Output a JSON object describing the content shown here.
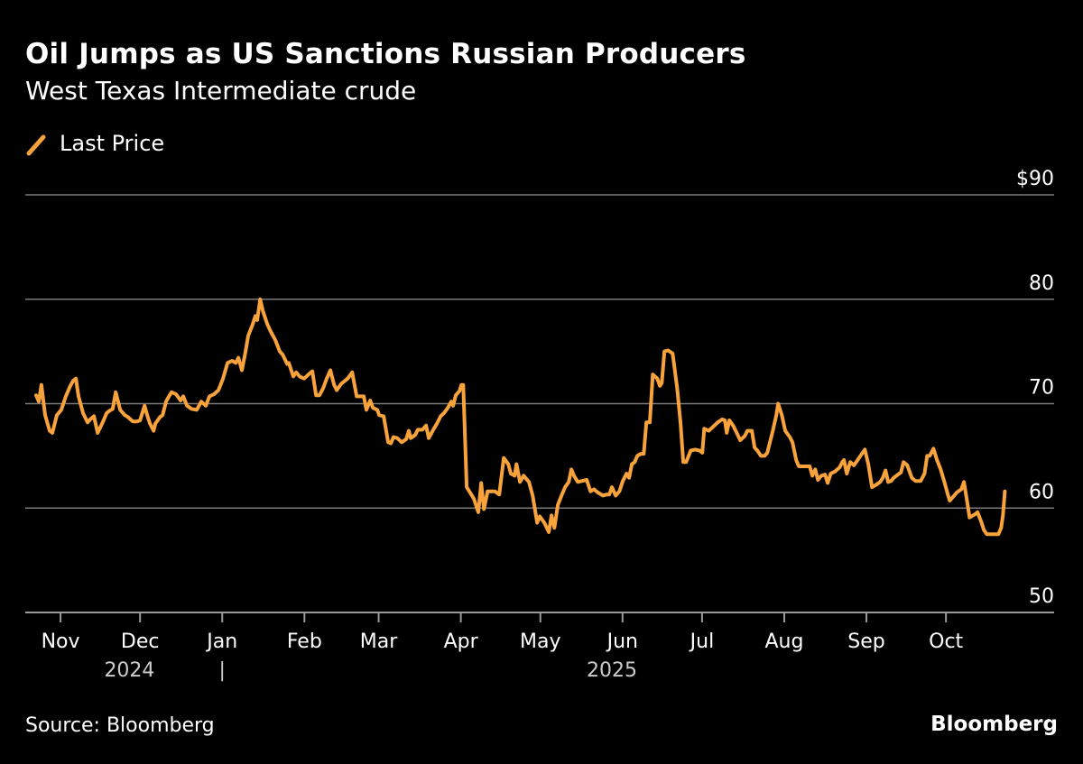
{
  "header": {
    "title": "Oil Jumps as US Sanctions Russian Producers",
    "subtitle": "West Texas Intermediate crude"
  },
  "footer": {
    "source": "Source: Bloomberg",
    "brand": "Bloomberg"
  },
  "colors": {
    "line": "#F7A23B",
    "background": "#000000",
    "grid": "#808080"
  },
  "chart_data": {
    "type": "line",
    "title": "Oil Jumps as US Sanctions Russian Producers",
    "subtitle": "West Texas Intermediate crude",
    "xlabel": "",
    "ylabel": "",
    "x_unit": "days since 2024-11-01",
    "ylim": [
      50,
      90
    ],
    "xlim": [
      -13.3,
      374.8
    ],
    "grid": true,
    "legend": {
      "placement": "top-left",
      "entries": [
        "Last Price"
      ]
    },
    "y_ticks": [
      {
        "value": 90,
        "label": "$90"
      },
      {
        "value": 80,
        "label": "80"
      },
      {
        "value": 70,
        "label": "70"
      },
      {
        "value": 60,
        "label": "60"
      },
      {
        "value": 50,
        "label": "50"
      }
    ],
    "x_ticks": [
      {
        "value": 0,
        "label": "Nov"
      },
      {
        "value": 30,
        "label": "Dec"
      },
      {
        "value": 61,
        "label": "Jan"
      },
      {
        "value": 92,
        "label": "Feb"
      },
      {
        "value": 120,
        "label": "Mar"
      },
      {
        "value": 151,
        "label": "Apr"
      },
      {
        "value": 181,
        "label": "May"
      },
      {
        "value": 212,
        "label": "Jun"
      },
      {
        "value": 242,
        "label": "Jul"
      },
      {
        "value": 273,
        "label": "Aug"
      },
      {
        "value": 304,
        "label": "Sep"
      },
      {
        "value": 334,
        "label": "Oct"
      }
    ],
    "year_labels": [
      {
        "value": 26,
        "label": "2024"
      },
      {
        "value": 61,
        "label": "|"
      },
      {
        "value": 208,
        "label": "2025"
      }
    ],
    "series": [
      {
        "name": "Last Price",
        "points": [
          [
            -9.2,
            70.8
          ],
          [
            -8.2,
            70.2
          ],
          [
            -7.2,
            71.8
          ],
          [
            -5.8,
            68.9
          ],
          [
            -4.1,
            67.4
          ],
          [
            -3.1,
            67.2
          ],
          [
            -1.4,
            68.9
          ],
          [
            0.3,
            69.4
          ],
          [
            2.0,
            70.7
          ],
          [
            3.7,
            71.7
          ],
          [
            4.8,
            72.2
          ],
          [
            5.8,
            72.4
          ],
          [
            6.8,
            70.7
          ],
          [
            8.5,
            69.1
          ],
          [
            10.2,
            68.2
          ],
          [
            11.2,
            68.5
          ],
          [
            12.6,
            68.8
          ],
          [
            14.0,
            67.2
          ],
          [
            15.7,
            68.1
          ],
          [
            17.4,
            69.1
          ],
          [
            18.4,
            69.3
          ],
          [
            19.7,
            69.5
          ],
          [
            20.8,
            71.1
          ],
          [
            22.5,
            69.4
          ],
          [
            24.2,
            68.9
          ],
          [
            25.5,
            68.7
          ],
          [
            27.2,
            68.3
          ],
          [
            28.9,
            68.3
          ],
          [
            30.0,
            68.4
          ],
          [
            31.7,
            69.8
          ],
          [
            32.7,
            68.9
          ],
          [
            33.7,
            68.1
          ],
          [
            35.1,
            67.4
          ],
          [
            35.8,
            68.1
          ],
          [
            37.5,
            68.7
          ],
          [
            38.5,
            68.9
          ],
          [
            39.8,
            70.2
          ],
          [
            40.9,
            70.7
          ],
          [
            41.9,
            71.1
          ],
          [
            43.6,
            70.9
          ],
          [
            45.3,
            70.3
          ],
          [
            46.3,
            70.7
          ],
          [
            47.7,
            69.8
          ],
          [
            49.4,
            69.5
          ],
          [
            51.4,
            69.4
          ],
          [
            53.1,
            70.2
          ],
          [
            54.8,
            69.8
          ],
          [
            56.2,
            70.7
          ],
          [
            57.9,
            70.9
          ],
          [
            59.6,
            71.3
          ],
          [
            61.3,
            72.4
          ],
          [
            63.0,
            73.9
          ],
          [
            64.7,
            74.1
          ],
          [
            66.1,
            73.9
          ],
          [
            67.1,
            74.4
          ],
          [
            68.4,
            73.2
          ],
          [
            69.8,
            75.0
          ],
          [
            70.8,
            76.5
          ],
          [
            72.5,
            77.6
          ],
          [
            73.5,
            78.4
          ],
          [
            74.2,
            78.0
          ],
          [
            75.3,
            80.0
          ],
          [
            76.3,
            78.9
          ],
          [
            78.0,
            77.6
          ],
          [
            79.3,
            76.9
          ],
          [
            81.0,
            76.1
          ],
          [
            82.7,
            75.0
          ],
          [
            83.8,
            74.7
          ],
          [
            85.5,
            73.8
          ],
          [
            86.1,
            73.9
          ],
          [
            87.8,
            72.6
          ],
          [
            88.9,
            73.0
          ],
          [
            90.2,
            72.6
          ],
          [
            91.9,
            72.4
          ],
          [
            94.0,
            72.9
          ],
          [
            95.0,
            73.1
          ],
          [
            96.4,
            70.8
          ],
          [
            97.7,
            70.8
          ],
          [
            99.1,
            71.5
          ],
          [
            100.4,
            72.4
          ],
          [
            101.8,
            73.2
          ],
          [
            103.2,
            71.8
          ],
          [
            104.2,
            71.3
          ],
          [
            105.9,
            71.9
          ],
          [
            108.3,
            72.4
          ],
          [
            110.0,
            73.0
          ],
          [
            111.7,
            70.7
          ],
          [
            112.7,
            70.7
          ],
          [
            114.4,
            70.7
          ],
          [
            115.4,
            69.4
          ],
          [
            116.8,
            70.3
          ],
          [
            117.8,
            69.6
          ],
          [
            119.5,
            69.4
          ],
          [
            120.2,
            68.9
          ],
          [
            121.9,
            68.8
          ],
          [
            123.6,
            66.3
          ],
          [
            124.6,
            66.2
          ],
          [
            125.6,
            66.8
          ],
          [
            127.0,
            66.7
          ],
          [
            128.7,
            66.3
          ],
          [
            130.4,
            66.6
          ],
          [
            131.4,
            67.4
          ],
          [
            132.1,
            66.7
          ],
          [
            133.8,
            67.0
          ],
          [
            134.8,
            67.5
          ],
          [
            136.5,
            67.5
          ],
          [
            137.9,
            67.9
          ],
          [
            138.9,
            66.7
          ],
          [
            140.6,
            67.5
          ],
          [
            142.0,
            68.1
          ],
          [
            143.4,
            68.8
          ],
          [
            144.7,
            69.1
          ],
          [
            146.1,
            69.6
          ],
          [
            147.4,
            70.2
          ],
          [
            148.1,
            69.8
          ],
          [
            149.1,
            70.8
          ],
          [
            150.5,
            71.2
          ],
          [
            151.2,
            71.8
          ],
          [
            151.9,
            71.8
          ],
          [
            153.2,
            62.0
          ],
          [
            154.2,
            61.6
          ],
          [
            155.9,
            60.9
          ],
          [
            157.6,
            59.6
          ],
          [
            158.7,
            62.4
          ],
          [
            159.7,
            59.9
          ],
          [
            161.1,
            61.6
          ],
          [
            163.8,
            61.6
          ],
          [
            165.5,
            61.3
          ],
          [
            167.2,
            64.8
          ],
          [
            168.9,
            64.2
          ],
          [
            169.9,
            63.3
          ],
          [
            171.3,
            63.1
          ],
          [
            172.0,
            64.2
          ],
          [
            173.3,
            62.5
          ],
          [
            174.7,
            63.1
          ],
          [
            176.7,
            62.5
          ],
          [
            178.1,
            61.2
          ],
          [
            179.8,
            58.6
          ],
          [
            180.8,
            59.2
          ],
          [
            182.5,
            58.6
          ],
          [
            184.2,
            57.7
          ],
          [
            185.2,
            59.3
          ],
          [
            186.3,
            58.1
          ],
          [
            187.6,
            60.3
          ],
          [
            189.0,
            61.2
          ],
          [
            190.3,
            62.0
          ],
          [
            191.7,
            62.5
          ],
          [
            192.7,
            63.7
          ],
          [
            193.7,
            63.1
          ],
          [
            195.1,
            62.5
          ],
          [
            196.8,
            62.6
          ],
          [
            198.5,
            62.7
          ],
          [
            199.9,
            61.6
          ],
          [
            201.2,
            61.8
          ],
          [
            202.6,
            61.5
          ],
          [
            204.6,
            61.2
          ],
          [
            206.0,
            61.3
          ],
          [
            207.0,
            61.3
          ],
          [
            208.0,
            62.0
          ],
          [
            209.4,
            61.2
          ],
          [
            210.8,
            61.6
          ],
          [
            212.1,
            62.6
          ],
          [
            213.5,
            63.3
          ],
          [
            214.5,
            62.9
          ],
          [
            215.5,
            64.2
          ],
          [
            216.6,
            64.4
          ],
          [
            217.6,
            65.0
          ],
          [
            218.9,
            65.2
          ],
          [
            220.0,
            65.2
          ],
          [
            221.0,
            68.2
          ],
          [
            222.3,
            68.2
          ],
          [
            223.4,
            72.8
          ],
          [
            225.1,
            72.4
          ],
          [
            226.1,
            71.7
          ],
          [
            226.8,
            72.0
          ],
          [
            227.8,
            75.0
          ],
          [
            229.2,
            75.1
          ],
          [
            230.9,
            74.8
          ],
          [
            232.6,
            71.5
          ],
          [
            233.9,
            68.1
          ],
          [
            234.9,
            64.4
          ],
          [
            236.0,
            64.4
          ],
          [
            237.7,
            65.5
          ],
          [
            239.4,
            65.6
          ],
          [
            241.1,
            65.5
          ],
          [
            242.1,
            65.3
          ],
          [
            242.8,
            67.6
          ],
          [
            244.5,
            67.4
          ],
          [
            246.2,
            67.8
          ],
          [
            247.9,
            68.2
          ],
          [
            249.6,
            68.5
          ],
          [
            250.6,
            68.4
          ],
          [
            251.3,
            67.2
          ],
          [
            252.3,
            68.4
          ],
          [
            253.7,
            67.9
          ],
          [
            254.7,
            67.4
          ],
          [
            256.4,
            66.5
          ],
          [
            258.1,
            66.9
          ],
          [
            259.1,
            67.4
          ],
          [
            260.8,
            67.4
          ],
          [
            261.8,
            65.8
          ],
          [
            262.9,
            65.5
          ],
          [
            264.2,
            65.0
          ],
          [
            265.6,
            65.0
          ],
          [
            266.6,
            65.3
          ],
          [
            267.6,
            66.3
          ],
          [
            268.7,
            67.4
          ],
          [
            270.0,
            68.9
          ],
          [
            270.7,
            70.0
          ],
          [
            272.1,
            68.9
          ],
          [
            273.4,
            67.4
          ],
          [
            275.1,
            66.8
          ],
          [
            276.1,
            66.3
          ],
          [
            277.5,
            64.6
          ],
          [
            278.5,
            64.0
          ],
          [
            280.2,
            64.0
          ],
          [
            282.6,
            64.0
          ],
          [
            283.6,
            63.1
          ],
          [
            284.7,
            63.7
          ],
          [
            285.7,
            62.7
          ],
          [
            287.0,
            63.1
          ],
          [
            288.4,
            63.2
          ],
          [
            289.4,
            62.4
          ],
          [
            290.5,
            63.3
          ],
          [
            292.1,
            63.5
          ],
          [
            293.9,
            63.9
          ],
          [
            294.9,
            64.4
          ],
          [
            295.5,
            64.6
          ],
          [
            296.6,
            63.3
          ],
          [
            297.9,
            64.4
          ],
          [
            299.3,
            64.1
          ],
          [
            300.7,
            64.6
          ],
          [
            302.0,
            65.1
          ],
          [
            303.4,
            65.6
          ],
          [
            304.7,
            64.2
          ],
          [
            306.1,
            62.0
          ],
          [
            307.5,
            62.2
          ],
          [
            309.2,
            62.5
          ],
          [
            310.2,
            62.9
          ],
          [
            311.2,
            63.6
          ],
          [
            312.2,
            62.5
          ],
          [
            313.3,
            62.6
          ],
          [
            314.3,
            62.9
          ],
          [
            315.3,
            63.1
          ],
          [
            317.0,
            63.4
          ],
          [
            318.0,
            64.4
          ],
          [
            319.4,
            64.1
          ],
          [
            321.1,
            62.9
          ],
          [
            322.5,
            62.6
          ],
          [
            324.5,
            62.6
          ],
          [
            325.9,
            63.3
          ],
          [
            326.9,
            65.0
          ],
          [
            327.9,
            65.0
          ],
          [
            329.3,
            65.7
          ],
          [
            330.6,
            64.6
          ],
          [
            332.0,
            63.7
          ],
          [
            333.4,
            62.5
          ],
          [
            334.7,
            61.3
          ],
          [
            335.4,
            60.7
          ],
          [
            337.1,
            61.2
          ],
          [
            338.1,
            61.5
          ],
          [
            339.8,
            61.8
          ],
          [
            340.8,
            62.5
          ],
          [
            342.2,
            60.3
          ],
          [
            342.9,
            59.1
          ],
          [
            344.9,
            59.4
          ],
          [
            345.9,
            59.6
          ],
          [
            347.3,
            58.7
          ],
          [
            348.3,
            57.9
          ],
          [
            349.4,
            57.5
          ],
          [
            351.7,
            57.5
          ],
          [
            353.8,
            57.5
          ],
          [
            354.8,
            58.1
          ],
          [
            355.5,
            59.3
          ],
          [
            356.2,
            61.6
          ]
        ]
      }
    ]
  }
}
